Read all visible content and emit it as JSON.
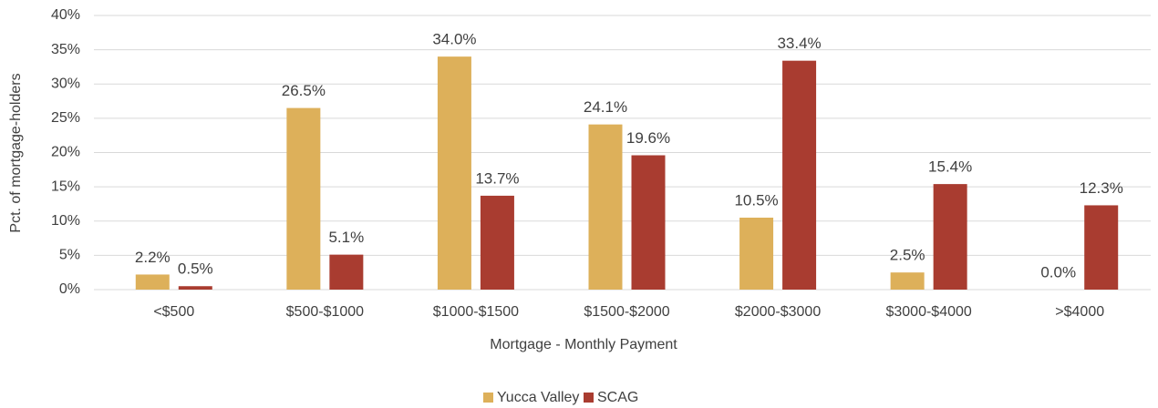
{
  "chart_data": {
    "type": "bar",
    "x_label": "Mortgage - Monthly Payment",
    "y_label": "Pct. of mortgage-holders",
    "categories": [
      "<$500",
      "$500-$1000",
      "$1000-$1500",
      "$1500-$2000",
      "$2000-$3000",
      "$3000-$4000",
      ">$4000"
    ],
    "series": [
      {
        "name": "Yucca Valley",
        "color": "#ddb05a",
        "values": [
          2.2,
          26.5,
          34.0,
          24.1,
          10.5,
          2.5,
          0.0
        ],
        "value_labels": [
          "2.2%",
          "26.5%",
          "34.0%",
          "24.1%",
          "10.5%",
          "2.5%",
          "0.0%"
        ]
      },
      {
        "name": "SCAG",
        "color": "#a93c30",
        "values": [
          0.5,
          5.1,
          13.7,
          19.6,
          33.4,
          15.4,
          12.3
        ],
        "value_labels": [
          "0.5%",
          "5.1%",
          "13.7%",
          "19.6%",
          "33.4%",
          "15.4%",
          "12.3%"
        ]
      }
    ],
    "ylim": [
      0,
      40
    ],
    "yticks": [
      {
        "value": 0,
        "label": "0%"
      },
      {
        "value": 5,
        "label": "5%"
      },
      {
        "value": 10,
        "label": "10%"
      },
      {
        "value": 15,
        "label": "15%"
      },
      {
        "value": 20,
        "label": "20%"
      },
      {
        "value": 25,
        "label": "25%"
      },
      {
        "value": 30,
        "label": "30%"
      },
      {
        "value": 35,
        "label": "35%"
      },
      {
        "value": 40,
        "label": "40%"
      }
    ],
    "grid": true,
    "legend": "bottom"
  }
}
